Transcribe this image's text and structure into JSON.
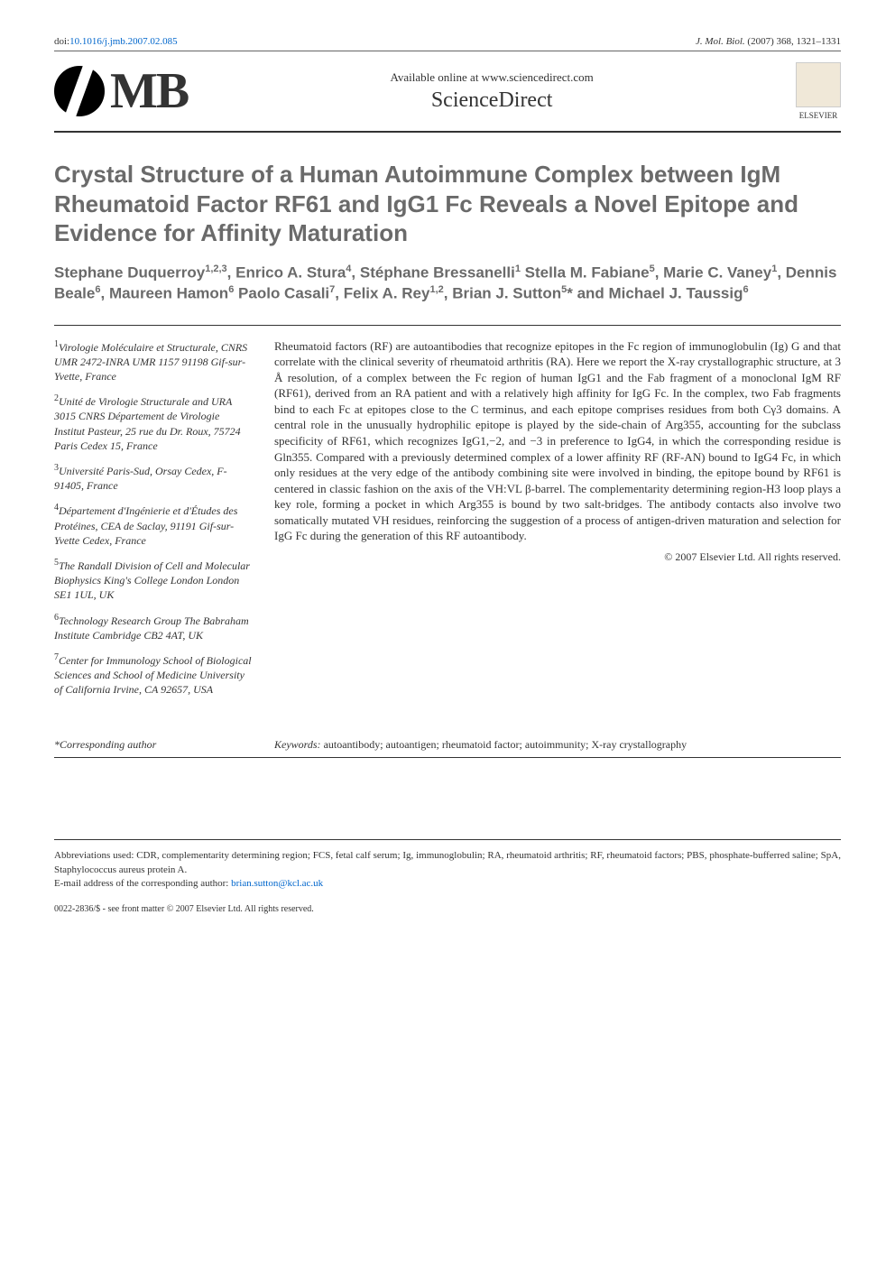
{
  "doi": {
    "label": "doi:",
    "value": "10.1016/j.jmb.2007.02.085"
  },
  "journal_ref": {
    "name": "J. Mol. Biol.",
    "year_vol": "(2007) 368, 1321–1331"
  },
  "logos": {
    "jmb_text": "MB",
    "available_text": "Available online at www.sciencedirect.com",
    "sciencedirect": "ScienceDirect",
    "elsevier": "ELSEVIER"
  },
  "title": "Crystal Structure of a Human Autoimmune Complex between IgM Rheumatoid Factor RF61 and IgG1 Fc Reveals a Novel Epitope and Evidence for Affinity Maturation",
  "authors_html": "Stephane Duquerroy<sup>1,2,3</sup>, Enrico A. Stura<sup>4</sup>, Stéphane Bressanelli<sup>1</sup> Stella M. Fabiane<sup>5</sup>, Marie C. Vaney<sup>1</sup>, Dennis Beale<sup>6</sup>, Maureen Hamon<sup>6</sup> Paolo Casali<sup>7</sup>, Felix A. Rey<sup>1,2</sup>, Brian J. Sutton<sup>5</sup>* and Michael J. Taussig<sup>6</sup>",
  "affiliations": [
    {
      "sup": "1",
      "text": "Virologie Moléculaire et Structurale, CNRS UMR 2472-INRA UMR 1157 91198 Gif-sur-Yvette, France"
    },
    {
      "sup": "2",
      "text": "Unité de Virologie Structurale and URA 3015 CNRS Département de Virologie Institut Pasteur, 25 rue du Dr. Roux, 75724 Paris Cedex 15, France"
    },
    {
      "sup": "3",
      "text": "Université Paris-Sud, Orsay Cedex, F-91405, France"
    },
    {
      "sup": "4",
      "text": "Département d'Ingénierie et d'Études des Protéines, CEA de Saclay, 91191 Gif-sur-Yvette Cedex, France"
    },
    {
      "sup": "5",
      "text": "The Randall Division of Cell and Molecular Biophysics King's College London London SE1 1UL, UK"
    },
    {
      "sup": "6",
      "text": "Technology Research Group The Babraham Institute Cambridge CB2 4AT, UK"
    },
    {
      "sup": "7",
      "text": "Center for Immunology School of Biological Sciences and School of Medicine University of California Irvine, CA 92657, USA"
    }
  ],
  "abstract": "Rheumatoid factors (RF) are autoantibodies that recognize epitopes in the Fc region of immunoglobulin (Ig) G and that correlate with the clinical severity of rheumatoid arthritis (RA). Here we report the X-ray crystallographic structure, at 3 Å resolution, of a complex between the Fc region of human IgG1 and the Fab fragment of a monoclonal IgM RF (RF61), derived from an RA patient and with a relatively high affinity for IgG Fc. In the complex, two Fab fragments bind to each Fc at epitopes close to the C terminus, and each epitope comprises residues from both Cγ3 domains. A central role in the unusually hydrophilic epitope is played by the side-chain of Arg355, accounting for the subclass specificity of RF61, which recognizes IgG1,−2, and −3 in preference to IgG4, in which the corresponding residue is Gln355. Compared with a previously determined complex of a lower affinity RF (RF-AN) bound to IgG4 Fc, in which only residues at the very edge of the antibody combining site were involved in binding, the epitope bound by RF61 is centered in classic fashion on the axis of the VH:VL β-barrel. The complementarity determining region-H3 loop plays a key role, forming a pocket in which Arg355 is bound by two salt-bridges. The antibody contacts also involve two somatically mutated VH residues, reinforcing the suggestion of a process of antigen-driven maturation and selection for IgG Fc during the generation of this RF autoantibody.",
  "copyright": "© 2007 Elsevier Ltd. All rights reserved.",
  "corresponding": "*Corresponding author",
  "keywords_label": "Keywords:",
  "keywords": "autoantibody; autoantigen; rheumatoid factor; autoimmunity; X-ray crystallography",
  "abbreviations_label": "Abbreviations used:",
  "abbreviations": "CDR, complementarity determining region; FCS, fetal calf serum; Ig, immunoglobulin; RA, rheumatoid arthritis; RF, rheumatoid factors; PBS, phosphate-bufferred saline; SpA, Staphylococcus aureus protein A.",
  "email_label": "E-mail address of the corresponding author:",
  "email": "brian.sutton@kcl.ac.uk",
  "footer": "0022-2836/$ - see front matter © 2007 Elsevier Ltd. All rights reserved."
}
